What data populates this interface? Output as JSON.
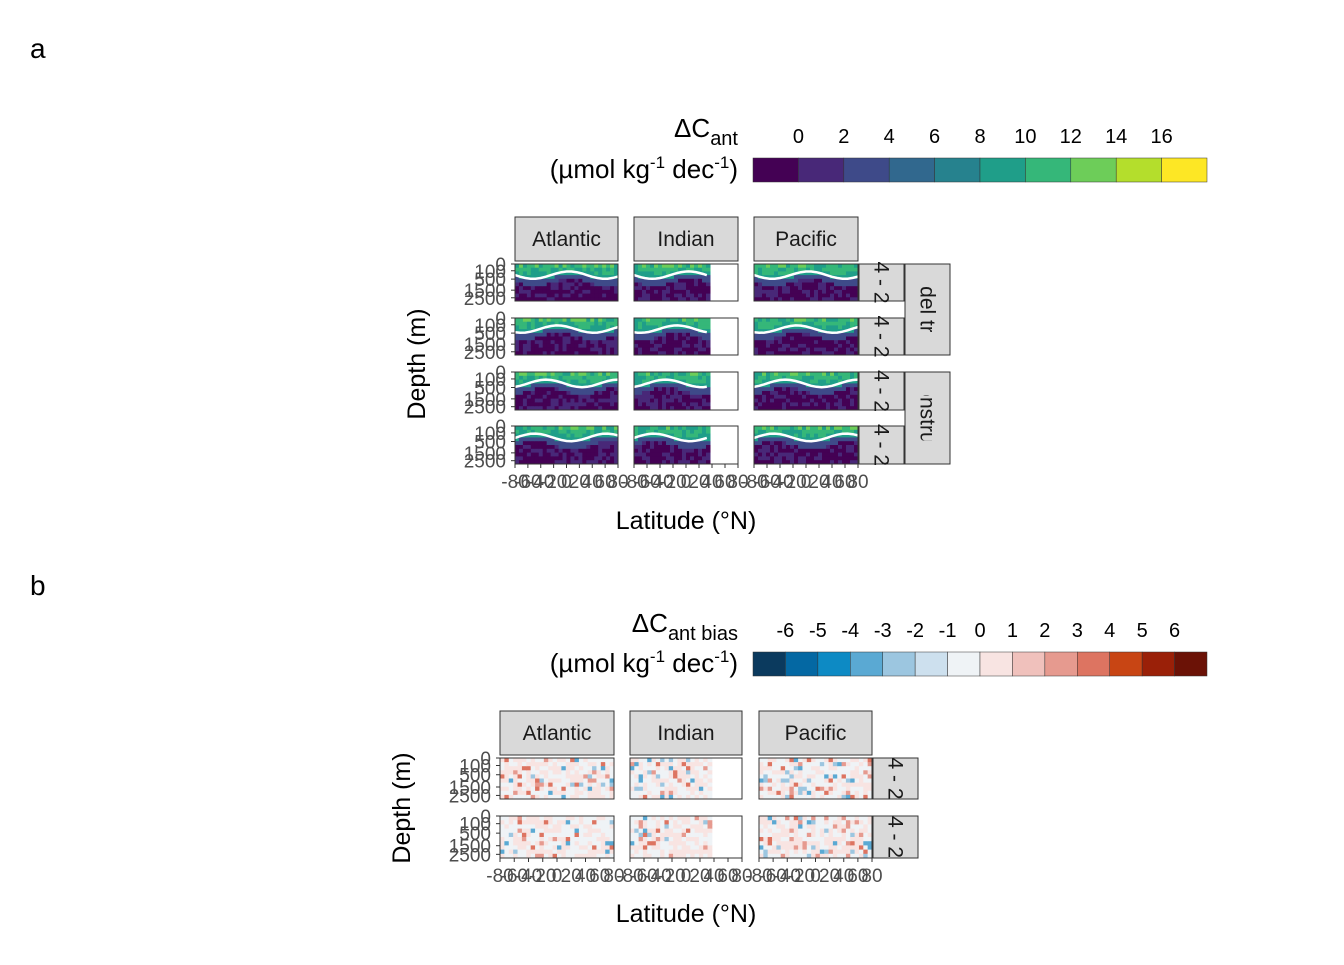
{
  "chart_data": [
    {
      "type": "contour",
      "panel_label": "a",
      "legend_title": {
        "main": "ΔC",
        "sub": "ant"
      },
      "legend_units": [
        "(µmol kg",
        "-1",
        " dec",
        "-1",
        ")"
      ],
      "colorbar": {
        "breaks": [
          0,
          2,
          4,
          6,
          8,
          10,
          12,
          14,
          16
        ],
        "colors": [
          "#440154",
          "#482878",
          "#3e4a89",
          "#31688e",
          "#26828e",
          "#1f9e89",
          "#35b779",
          "#6dcd59",
          "#b4de2c",
          "#fde725"
        ]
      },
      "columns": [
        "Atlantic",
        "Indian",
        "Pacific"
      ],
      "row_labels": [
        "4 - 2",
        "4 - 2",
        "4 - 2",
        "4 - 2"
      ],
      "row_groups": [
        "Model truth",
        "Reconstruction"
      ],
      "x_label": "Latitude (°N)",
      "y_label": "Depth (m)",
      "xlim": [
        -80,
        80
      ],
      "xticks": [
        -80,
        -60,
        -40,
        -20,
        0,
        20,
        40,
        60,
        80
      ],
      "ylim": [
        0,
        3000
      ],
      "yticks": [
        0,
        100,
        500,
        1500,
        2500
      ],
      "y_scale": "sqrt",
      "y_reversed": true
    },
    {
      "type": "contour",
      "panel_label": "b",
      "legend_title": {
        "main": "ΔC",
        "sub": "ant bias"
      },
      "legend_units": [
        "(µmol kg",
        "-1",
        " dec",
        "-1",
        ")"
      ],
      "colorbar": {
        "breaks": [
          -6,
          -5,
          -4,
          -3,
          -2,
          -1,
          0,
          1,
          2,
          3,
          4,
          5,
          6
        ],
        "colors": [
          "#0b3a5e",
          "#0468a3",
          "#0d8ac4",
          "#5aa9d3",
          "#9cc6e0",
          "#cde0ee",
          "#eff3f6",
          "#f8e4e2",
          "#f0c1bc",
          "#e69a8f",
          "#dd7461",
          "#c84514",
          "#9a2008",
          "#6b1206"
        ]
      },
      "columns": [
        "Atlantic",
        "Indian",
        "Pacific"
      ],
      "row_labels": [
        "4 - 2",
        "4 - 2"
      ],
      "x_label": "Latitude (°N)",
      "y_label": "Depth (m)",
      "xlim": [
        -80,
        80
      ],
      "xticks": [
        -80,
        -60,
        -40,
        -20,
        0,
        20,
        40,
        60,
        80
      ],
      "ylim": [
        0,
        3000
      ],
      "yticks": [
        0,
        100,
        500,
        1500,
        2500
      ],
      "y_scale": "sqrt",
      "y_reversed": true
    }
  ]
}
